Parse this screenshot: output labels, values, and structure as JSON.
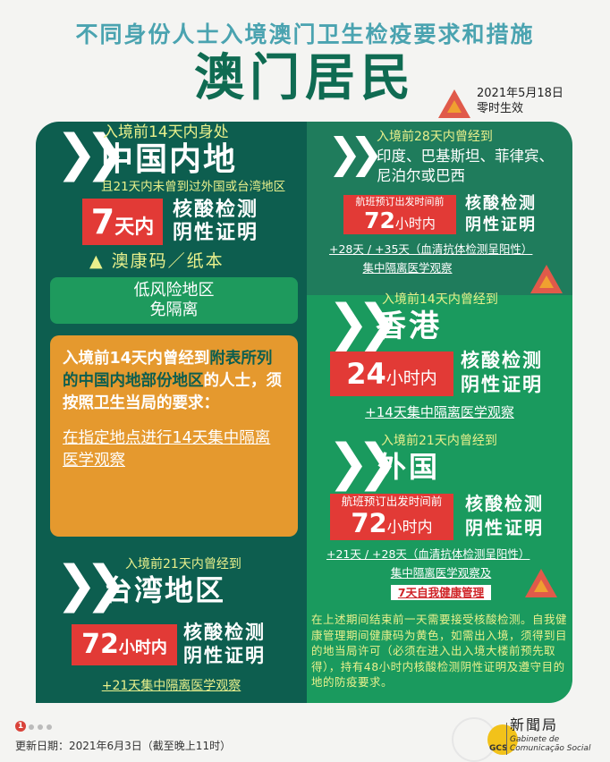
{
  "header": {
    "subtitle": "不同身份人士入境澳门卫生检疫要求和措施",
    "title": "澳门居民",
    "effective_date": "2021年5月18日",
    "effective_time": "零时生效"
  },
  "mainland": {
    "pre": "入境前14天内身处",
    "region": "中国内地",
    "note": "且21天内未曾到过外国或台湾地区",
    "days_num": "7",
    "days_unit": "天内",
    "test1": "核酸检测",
    "test2": "阴性证明",
    "code": "▲ 澳康码／纸本",
    "lowrisk1": "低风险地区",
    "lowrisk2": "免隔离"
  },
  "orange": {
    "lead": "入境前14天内曾经到",
    "hl": "附表所列的中国内地部份地区",
    "rest": "的人士，须按照卫生当局的要求：",
    "link": "在指定地点进行14天集中隔离医学观察"
  },
  "taiwan": {
    "pre": "入境前21天内曾经到",
    "region": "台湾地区",
    "hours_num": "72",
    "hours_unit": "小时内",
    "test1": "核酸检测",
    "test2": "阴性证明",
    "quarantine": "+21天集中隔离医学观察"
  },
  "india": {
    "pre": "入境前28天内曾经到",
    "region1": "印度、巴基斯坦、菲律宾、",
    "region2": "尼泊尔或巴西",
    "flight": "航班预订出发时间前",
    "hours_num": "72",
    "hours_unit": "小时内",
    "test1": "核酸检测",
    "test2": "阴性证明",
    "days": "+28天 / +35天（血清抗体检测呈阳性）",
    "quarantine": "集中隔离医学观察"
  },
  "hongkong": {
    "pre": "入境前14天内曾经到",
    "region": "香港",
    "hours_num": "24",
    "hours_unit": "小时内",
    "test1": "核酸检测",
    "test2": "阴性证明",
    "quarantine": "+14天集中隔离医学观察"
  },
  "foreign": {
    "pre": "入境前21天内曾经到",
    "region": "外国",
    "flight": "航班预订出发时间前",
    "hours_num": "72",
    "hours_unit": "小时内",
    "test1": "核酸检测",
    "test2": "阴性证明",
    "days": "+21天 / +28天（血清抗体检测呈阳性）",
    "quarantine": "集中隔离医学观察及",
    "self": "7天自我健康管理",
    "note": "在上述期间结束前一天需要接受核酸检测。自我健康管理期间健康码为黄色，如需出入境，须得到目的地当局许可（必须在进入出入境大楼前预先取得），持有48小时内核酸检测阴性证明及遵守目的地的防疫要求。"
  },
  "footer": {
    "page": "1",
    "updated": "更新日期：2021年6月3日（截至晚上11时）",
    "logo_cn": "新聞局",
    "logo_pt1": "Gabinete de",
    "logo_pt2": "Comunicação Social",
    "logo_abbr": "GCS"
  },
  "colors": {
    "left_panel": "#0d5e4f",
    "right_top": "#1f7c5c",
    "right_bottom": "#1a9a5e",
    "red": "#e23a36",
    "orange": "#e5992e",
    "accent_yellow": "#e9f08c"
  }
}
